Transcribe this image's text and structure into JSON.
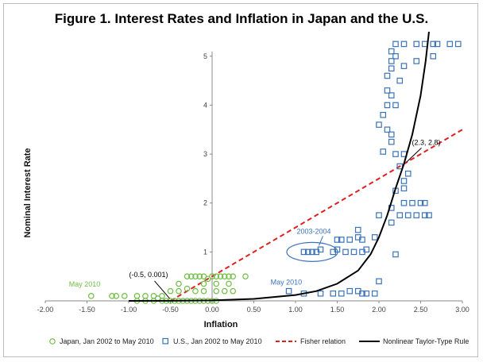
{
  "chart_data": {
    "type": "scatter",
    "title": "Figure 1.  Interest Rates and Inflation in Japan and the U.S.",
    "xlabel": "Inflation",
    "ylabel": "Nominal Interest Rate",
    "xlim": [
      -2.0,
      3.0
    ],
    "ylim": [
      0,
      5.5
    ],
    "x_ticks": [
      "-2.00",
      "-1.50",
      "-1.00",
      "-0.50",
      "0.00",
      "0.50",
      "1.00",
      "1.50",
      "2.00",
      "2.50",
      "3.00"
    ],
    "y_ticks": [
      "1",
      "2",
      "3",
      "4",
      "5"
    ],
    "colors": {
      "japan": "#6fbe44",
      "us": "#3a73b8",
      "fisher": "#e02020",
      "taylor": "#000000"
    },
    "series": [
      {
        "name": "Japan, Jan 2002 to May 2010",
        "marker": "circle",
        "points": [
          [
            -1.45,
            0.1
          ],
          [
            -1.2,
            0.1
          ],
          [
            -1.15,
            0.1
          ],
          [
            -1.05,
            0.1
          ],
          [
            -0.9,
            0.1
          ],
          [
            -0.8,
            0.1
          ],
          [
            -0.7,
            0.1
          ],
          [
            -0.65,
            0.05
          ],
          [
            -0.6,
            0.0
          ],
          [
            -0.55,
            0.0
          ],
          [
            -0.5,
            0.0
          ],
          [
            -0.45,
            0.0
          ],
          [
            -0.4,
            0.0
          ],
          [
            -0.35,
            0.0
          ],
          [
            -0.3,
            0.0
          ],
          [
            -0.25,
            0.0
          ],
          [
            -0.2,
            0.0
          ],
          [
            -0.15,
            0.0
          ],
          [
            -0.1,
            0.0
          ],
          [
            -0.05,
            0.0
          ],
          [
            0.0,
            0.0
          ],
          [
            0.05,
            0.0
          ],
          [
            -0.5,
            0.2
          ],
          [
            -0.4,
            0.2
          ],
          [
            -0.3,
            0.25
          ],
          [
            -0.2,
            0.2
          ],
          [
            -0.1,
            0.2
          ],
          [
            0.05,
            0.2
          ],
          [
            0.15,
            0.2
          ],
          [
            0.25,
            0.2
          ],
          [
            -0.3,
            0.5
          ],
          [
            -0.25,
            0.5
          ],
          [
            -0.2,
            0.5
          ],
          [
            -0.15,
            0.5
          ],
          [
            -0.1,
            0.5
          ],
          [
            -0.05,
            0.45
          ],
          [
            0.0,
            0.5
          ],
          [
            0.05,
            0.5
          ],
          [
            0.1,
            0.5
          ],
          [
            0.15,
            0.5
          ],
          [
            0.2,
            0.5
          ],
          [
            0.25,
            0.5
          ],
          [
            0.4,
            0.5
          ],
          [
            -0.4,
            0.35
          ],
          [
            -0.1,
            0.35
          ],
          [
            0.05,
            0.35
          ],
          [
            0.2,
            0.35
          ],
          [
            -0.6,
            0.1
          ],
          [
            -0.7,
            0.0
          ],
          [
            -0.8,
            0.0
          ],
          [
            -0.9,
            0.0
          ]
        ]
      },
      {
        "name": "U.S., Jan 2002 to May 2010",
        "marker": "square",
        "points": [
          [
            0.92,
            0.2
          ],
          [
            1.1,
            0.15
          ],
          [
            1.3,
            0.15
          ],
          [
            1.45,
            0.15
          ],
          [
            1.55,
            0.15
          ],
          [
            1.65,
            0.2
          ],
          [
            1.75,
            0.2
          ],
          [
            1.8,
            0.15
          ],
          [
            1.85,
            0.15
          ],
          [
            1.95,
            0.15
          ],
          [
            2.0,
            0.4
          ],
          [
            1.1,
            1.0
          ],
          [
            1.15,
            1.0
          ],
          [
            1.2,
            1.0
          ],
          [
            1.25,
            1.0
          ],
          [
            1.3,
            1.05
          ],
          [
            1.45,
            1.0
          ],
          [
            1.5,
            1.05
          ],
          [
            1.6,
            1.0
          ],
          [
            1.7,
            1.0
          ],
          [
            1.8,
            1.0
          ],
          [
            1.85,
            1.05
          ],
          [
            1.5,
            1.25
          ],
          [
            1.55,
            1.25
          ],
          [
            1.65,
            1.25
          ],
          [
            1.75,
            1.3
          ],
          [
            1.8,
            1.25
          ],
          [
            1.95,
            1.3
          ],
          [
            1.75,
            1.45
          ],
          [
            2.0,
            1.75
          ],
          [
            2.2,
            0.95
          ],
          [
            2.15,
            1.6
          ],
          [
            2.15,
            1.9
          ],
          [
            2.25,
            1.75
          ],
          [
            2.3,
            2.0
          ],
          [
            2.35,
            1.75
          ],
          [
            2.4,
            2.0
          ],
          [
            2.45,
            1.75
          ],
          [
            2.5,
            2.0
          ],
          [
            2.55,
            1.75
          ],
          [
            2.6,
            1.75
          ],
          [
            2.55,
            2.0
          ],
          [
            2.2,
            2.25
          ],
          [
            2.3,
            2.3
          ],
          [
            2.3,
            2.45
          ],
          [
            2.25,
            2.75
          ],
          [
            2.3,
            3.0
          ],
          [
            2.35,
            2.6
          ],
          [
            2.2,
            3.0
          ],
          [
            2.05,
            3.05
          ],
          [
            2.15,
            3.25
          ],
          [
            2.0,
            3.6
          ],
          [
            2.1,
            3.5
          ],
          [
            2.15,
            3.4
          ],
          [
            2.05,
            3.8
          ],
          [
            2.1,
            4.0
          ],
          [
            2.15,
            4.2
          ],
          [
            2.2,
            4.0
          ],
          [
            2.1,
            4.3
          ],
          [
            2.25,
            4.5
          ],
          [
            2.1,
            4.6
          ],
          [
            2.15,
            4.75
          ],
          [
            2.3,
            4.8
          ],
          [
            2.15,
            4.9
          ],
          [
            2.2,
            5.0
          ],
          [
            2.15,
            5.1
          ],
          [
            2.45,
            4.9
          ],
          [
            2.65,
            5.0
          ],
          [
            2.2,
            5.25
          ],
          [
            2.3,
            5.25
          ],
          [
            2.45,
            5.25
          ],
          [
            2.55,
            5.25
          ],
          [
            2.65,
            5.25
          ],
          [
            2.7,
            5.25
          ],
          [
            2.85,
            5.25
          ],
          [
            2.95,
            5.25
          ]
        ]
      },
      {
        "name": "Fisher relation",
        "line_style": "dashed",
        "points": [
          [
            -0.5,
            0.0
          ],
          [
            3.0,
            3.5
          ]
        ]
      },
      {
        "name": "Nonlinear Taylor-Type Rule",
        "line_style": "solid",
        "points": [
          [
            -1.0,
            0.0
          ],
          [
            -0.5,
            0.001
          ],
          [
            0.0,
            0.01
          ],
          [
            0.5,
            0.04
          ],
          [
            1.0,
            0.12
          ],
          [
            1.25,
            0.2
          ],
          [
            1.5,
            0.35
          ],
          [
            1.75,
            0.62
          ],
          [
            1.9,
            0.95
          ],
          [
            2.0,
            1.3
          ],
          [
            2.1,
            1.75
          ],
          [
            2.2,
            2.3
          ],
          [
            2.3,
            2.8
          ],
          [
            2.4,
            3.4
          ],
          [
            2.5,
            4.2
          ],
          [
            2.56,
            4.9
          ],
          [
            2.6,
            5.5
          ]
        ]
      }
    ],
    "annotations": [
      {
        "text": "(2.3, 2.8)",
        "x": 2.3,
        "y": 2.8
      },
      {
        "text": "(-0.5, 0.001)",
        "x": -0.5,
        "y": 0.001
      },
      {
        "text": "2003-2004",
        "x": 1.3,
        "y": 1.0
      },
      {
        "text": "May 2010",
        "x": 0.92,
        "y": 0.2
      },
      {
        "text": "May 2010",
        "x": -1.45,
        "y": 0.1
      }
    ],
    "legend": {
      "placement": "bottom",
      "items": [
        "Japan, Jan 2002 to May 2010",
        "U.S., Jan 2002 to May 2010",
        "Fisher relation",
        "Nonlinear Taylor-Type Rule"
      ]
    },
    "grid": false
  }
}
